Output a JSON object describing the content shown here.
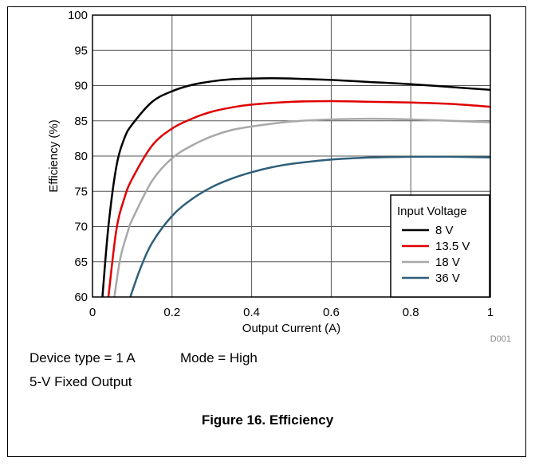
{
  "chart_data": {
    "type": "line",
    "xlabel": "Output Current (A)",
    "ylabel": "Efficiency (%)",
    "xlim": [
      0,
      1
    ],
    "ylim": [
      60,
      100
    ],
    "xticks": [
      "0",
      "0.2",
      "0.4",
      "0.6",
      "0.8",
      "1"
    ],
    "yticks": [
      "60",
      "65",
      "70",
      "75",
      "80",
      "85",
      "90",
      "95",
      "100"
    ],
    "grid": true,
    "legend_title": "Input Voltage",
    "legend_position": "bottom-right",
    "series": [
      {
        "name": "8 V",
        "color": "#000000",
        "x": [
          0.025,
          0.04,
          0.06,
          0.08,
          0.1,
          0.15,
          0.2,
          0.25,
          0.3,
          0.35,
          0.4,
          0.45,
          0.5,
          0.6,
          0.7,
          0.8,
          0.9,
          1.0
        ],
        "y": [
          60,
          70,
          78.5,
          82.5,
          84.5,
          87.7,
          89.2,
          90.1,
          90.6,
          90.9,
          91.0,
          91.05,
          91.0,
          90.8,
          90.5,
          90.2,
          89.8,
          89.4
        ]
      },
      {
        "name": "13.5 V",
        "color": "#e00000",
        "x": [
          0.04,
          0.06,
          0.08,
          0.1,
          0.15,
          0.2,
          0.25,
          0.3,
          0.35,
          0.4,
          0.5,
          0.6,
          0.7,
          0.8,
          0.9,
          1.0
        ],
        "y": [
          60,
          69.5,
          74,
          76.8,
          81.5,
          83.9,
          85.3,
          86.3,
          86.9,
          87.3,
          87.7,
          87.8,
          87.7,
          87.6,
          87.4,
          87.0
        ]
      },
      {
        "name": "18 V",
        "color": "#a8a8a8",
        "x": [
          0.055,
          0.07,
          0.09,
          0.1,
          0.15,
          0.2,
          0.25,
          0.3,
          0.35,
          0.4,
          0.5,
          0.6,
          0.7,
          0.8,
          0.9,
          1.0
        ],
        "y": [
          60,
          65.5,
          69.5,
          71,
          76.5,
          79.7,
          81.5,
          82.8,
          83.7,
          84.2,
          84.9,
          85.2,
          85.3,
          85.2,
          85.0,
          84.8
        ]
      },
      {
        "name": "36 V",
        "color": "#2e5f7a",
        "x": [
          0.095,
          0.12,
          0.15,
          0.2,
          0.25,
          0.3,
          0.35,
          0.4,
          0.45,
          0.5,
          0.6,
          0.7,
          0.8,
          0.9,
          1.0
        ],
        "y": [
          60,
          64,
          67.7,
          71.5,
          73.9,
          75.6,
          76.8,
          77.7,
          78.4,
          78.9,
          79.5,
          79.8,
          79.9,
          79.9,
          79.8
        ]
      }
    ],
    "annotation": "D001"
  },
  "notes": {
    "device_type": "Device type = 1 A",
    "mode": "Mode = High",
    "output": "5-V Fixed Output"
  },
  "caption": "Figure 16. Efficiency"
}
